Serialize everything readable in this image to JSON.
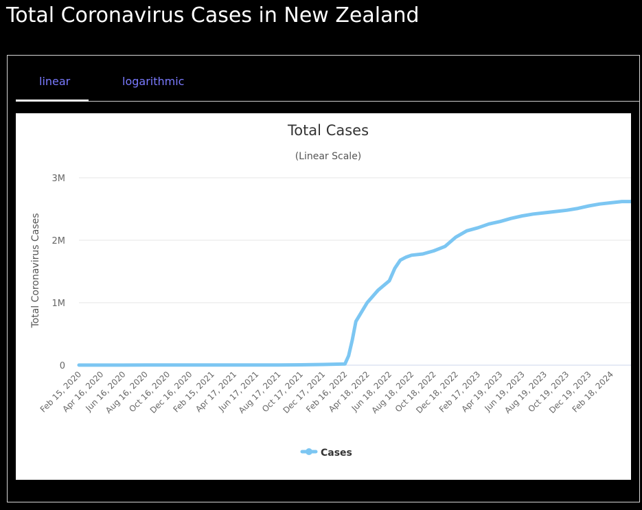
{
  "page": {
    "title": "Total Coronavirus Cases in New Zealand"
  },
  "tabs": [
    {
      "label": "linear",
      "active": true
    },
    {
      "label": "logarithmic",
      "active": false
    }
  ],
  "colors": {
    "series": "#7cc6f2",
    "tab_text": "#7a7aff",
    "background": "#000000"
  },
  "chart_data": {
    "type": "line",
    "title": "Total Cases",
    "subtitle": "(Linear Scale)",
    "ylabel": "Total Coronavirus Cases",
    "xlabel": "",
    "ylim": [
      0,
      3000000
    ],
    "y_ticks": [
      {
        "value": 0,
        "label": "0"
      },
      {
        "value": 1000000,
        "label": "1M"
      },
      {
        "value": 2000000,
        "label": "2M"
      },
      {
        "value": 3000000,
        "label": "3M"
      }
    ],
    "x_tick_labels": [
      "Feb 15, 2020",
      "Apr 16, 2020",
      "Jun 16, 2020",
      "Aug 16, 2020",
      "Oct 16, 2020",
      "Dec 16, 2020",
      "Feb 15, 2021",
      "Apr 17, 2021",
      "Jun 17, 2021",
      "Aug 17, 2021",
      "Oct 17, 2021",
      "Dec 17, 2021",
      "Feb 16, 2022",
      "Apr 18, 2022",
      "Jun 18, 2022",
      "Aug 18, 2022",
      "Oct 18, 2022",
      "Dec 18, 2022",
      "Feb 17, 2023",
      "Apr 19, 2023",
      "Jun 19, 2023",
      "Aug 19, 2023",
      "Oct 19, 2023",
      "Dec 19, 2023",
      "Feb 18, 2024"
    ],
    "legend": {
      "position": "bottom-center",
      "entries": [
        "Cases"
      ]
    },
    "grid": true,
    "series": [
      {
        "name": "Cases",
        "x": [
          "Feb 15, 2020",
          "Apr 16, 2020",
          "Jun 16, 2020",
          "Aug 16, 2020",
          "Oct 16, 2020",
          "Dec 16, 2020",
          "Feb 15, 2021",
          "Apr 17, 2021",
          "Jun 17, 2021",
          "Aug 17, 2021",
          "Oct 17, 2021",
          "Nov 16, 2021",
          "Dec 17, 2021",
          "Jan 16, 2022",
          "Feb 16, 2022",
          "Feb 26, 2022",
          "Mar 8, 2022",
          "Mar 18, 2022",
          "Apr 18, 2022",
          "May 18, 2022",
          "Jun 18, 2022",
          "Jul 3, 2022",
          "Jul 18, 2022",
          "Aug 3, 2022",
          "Aug 18, 2022",
          "Sep 18, 2022",
          "Oct 18, 2022",
          "Nov 18, 2022",
          "Dec 18, 2022",
          "Jan 17, 2023",
          "Feb 17, 2023",
          "Mar 19, 2023",
          "Apr 19, 2023",
          "May 19, 2023",
          "Jun 19, 2023",
          "Jul 19, 2023",
          "Aug 19, 2023",
          "Sep 19, 2023",
          "Oct 19, 2023",
          "Nov 19, 2023",
          "Dec 19, 2023",
          "Jan 18, 2024",
          "Feb 18, 2024",
          "Mar 19, 2024",
          "Apr 13, 2024"
        ],
        "values": [
          1000,
          1500,
          1500,
          1700,
          1900,
          2100,
          2300,
          2600,
          2700,
          3000,
          5000,
          8000,
          11000,
          15000,
          20000,
          150000,
          400000,
          700000,
          1000000,
          1200000,
          1350000,
          1550000,
          1680000,
          1730000,
          1760000,
          1780000,
          1830000,
          1900000,
          2050000,
          2150000,
          2200000,
          2260000,
          2300000,
          2350000,
          2390000,
          2420000,
          2440000,
          2460000,
          2480000,
          2510000,
          2550000,
          2580000,
          2600000,
          2620000,
          2620000
        ]
      }
    ]
  }
}
